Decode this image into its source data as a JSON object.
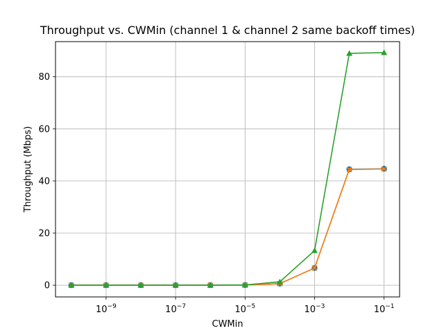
{
  "chart_data": {
    "type": "line",
    "title": "Throughput vs. CWMin (channel 1 & channel 2 same backoff times)",
    "xlabel": "CWMin",
    "ylabel": "Throughput (Mbps)",
    "xscale": "log",
    "xlim": [
      3.5e-11,
      0.28
    ],
    "ylim": [
      -4.5,
      93.5
    ],
    "grid": true,
    "x": [
      1e-10,
      1e-09,
      1e-08,
      1e-07,
      1e-06,
      1e-05,
      0.0001,
      0.001,
      0.01,
      0.1
    ],
    "x_tick_values": [
      1e-09,
      1e-07,
      1e-05,
      0.001,
      0.1
    ],
    "x_tick_labels": [
      {
        "base": "10",
        "exp": "−9"
      },
      {
        "base": "10",
        "exp": "−7"
      },
      {
        "base": "10",
        "exp": "−5"
      },
      {
        "base": "10",
        "exp": "−3"
      },
      {
        "base": "10",
        "exp": "−1"
      }
    ],
    "y_ticks": [
      0,
      20,
      40,
      60,
      80
    ],
    "y_tick_labels": [
      "0",
      "20",
      "40",
      "60",
      "80"
    ],
    "series": [
      {
        "values": [
          0,
          0,
          0,
          0,
          0,
          0.05,
          0.6,
          6.6,
          44.5,
          44.7
        ],
        "color": "#1f77b4",
        "marker": "circle"
      },
      {
        "values": [
          0,
          0,
          0,
          0,
          0,
          0.05,
          0.6,
          6.6,
          44.4,
          44.6
        ],
        "color": "#ff7f0e",
        "marker": "x"
      },
      {
        "values": [
          0,
          0,
          0,
          0,
          0,
          0.1,
          1.3,
          13.3,
          89.0,
          89.3
        ],
        "color": "#2ca02c",
        "marker": "triangle"
      }
    ]
  }
}
